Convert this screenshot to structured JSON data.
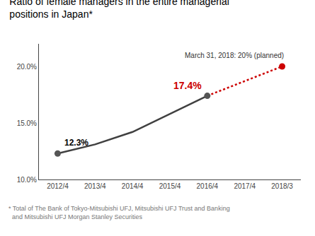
{
  "chart_data": {
    "type": "line",
    "title": "Ratio of female managers in the entire managerial\npositions in Japan*",
    "footnote": "* Total of The Bank of Tokyo-Mitsubishi UFJ, Mitsubishi UFJ Trust and Banking\n  and Mitsubishi UFJ Morgan Stanley Securities",
    "categories": [
      "2012/4",
      "2013/4",
      "2014/4",
      "2015/4",
      "2016/4",
      "2017/4",
      "2018/3"
    ],
    "series": [
      {
        "type": "line",
        "x": [
          "2012/4",
          "2013/4",
          "2014/4",
          "2015/4",
          "2016/4"
        ],
        "values": [
          12.3,
          13.1,
          14.2,
          15.8,
          17.4
        ],
        "color": "#404040",
        "line_style": "solid"
      },
      {
        "type": "line",
        "x": [
          "2016/4",
          "2018/3"
        ],
        "values": [
          17.4,
          20.0
        ],
        "color": "#cc0000",
        "line_style": "dotted"
      },
      {
        "type": "scatter",
        "x": [
          "2012/4",
          "2016/4"
        ],
        "values": [
          12.3,
          17.4
        ],
        "color": "#555555",
        "marker": "circle"
      },
      {
        "type": "scatter",
        "x": [
          "2018/3"
        ],
        "values": [
          20.0
        ],
        "color": "#cc0000",
        "marker": "circle"
      }
    ],
    "annotations": [
      {
        "text": "12.3%",
        "x": "2012/4",
        "y": 12.3,
        "color": "#000000"
      },
      {
        "text": "17.4%",
        "x": "2016/4",
        "y": 17.4,
        "color": "#cc0000"
      },
      {
        "text": "March 31, 2018: 20% (planned)",
        "x": "2018/3",
        "y": 20.0,
        "color": "#333333"
      }
    ],
    "ylim": [
      10.0,
      22.0
    ],
    "yticks": [
      {
        "value": 10.0,
        "label": "10.0%"
      },
      {
        "value": 15.0,
        "label": "15.0%"
      },
      {
        "value": 20.0,
        "label": "20.0%"
      }
    ],
    "grid": false
  }
}
